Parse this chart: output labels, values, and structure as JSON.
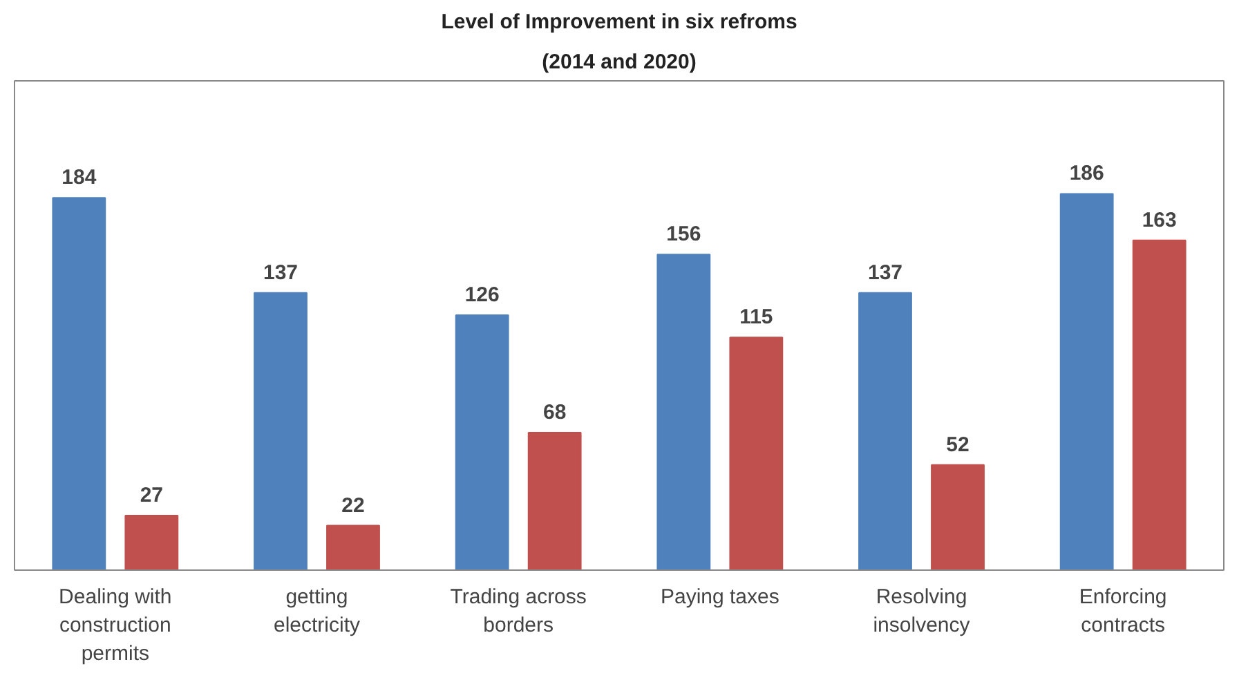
{
  "chart_data": {
    "type": "bar",
    "title": "Level of Improvement in six refroms",
    "subtitle": "(2014 and 2020)",
    "categories": [
      "Dealing with construction permits",
      "getting electricity",
      "Trading across borders",
      "Paying taxes",
      "Resolving insolvency",
      "Enforcing contracts"
    ],
    "series": [
      {
        "color": "#4f81bd",
        "values": [
          184,
          137,
          126,
          156,
          137,
          186
        ]
      },
      {
        "color": "#c0504d",
        "values": [
          27,
          22,
          68,
          115,
          52,
          163
        ]
      }
    ],
    "data_labels": true
  }
}
